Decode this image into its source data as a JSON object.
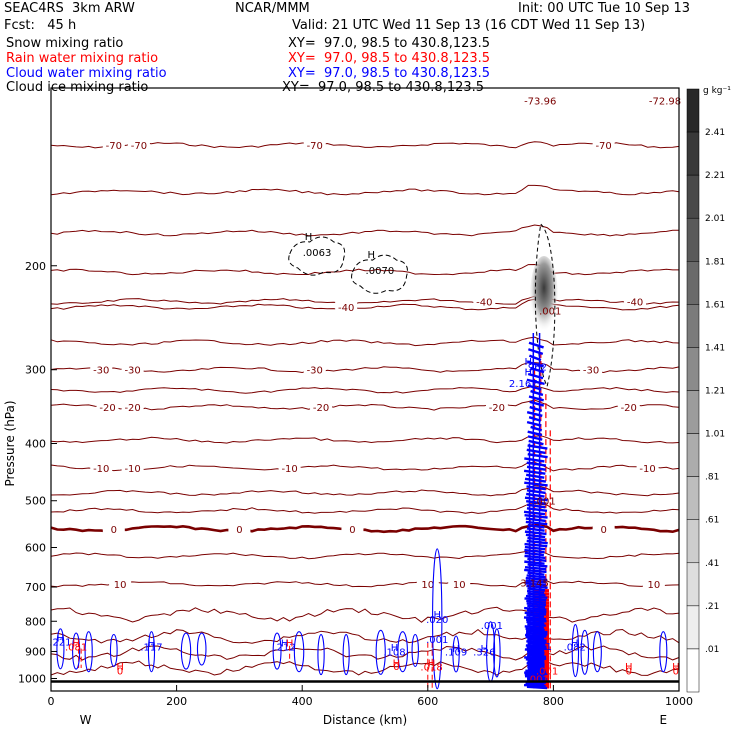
{
  "header": {
    "model": "SEAC4RS  3km ARW",
    "center": "NCAR/MMM",
    "init": "Init: 00 UTC Tue 10 Sep 13",
    "fcst": "Fcst:   45 h",
    "valid": "Valid: 21 UTC Wed 11 Sep 13 (16 CDT Wed 11 Sep 13)"
  },
  "fields": [
    {
      "name": "Snow mixing ratio",
      "xy": "XY=  97.0, 98.5 to 430.8,123.5",
      "color": "#000000"
    },
    {
      "name": "Rain water mixing ratio",
      "xy": "XY=  97.0, 98.5 to 430.8,123.5",
      "color": "#ff0000"
    },
    {
      "name": "Cloud water mixing ratio",
      "xy": "XY=  97.0, 98.5 to 430.8,123.5",
      "color": "#0000ff"
    },
    {
      "name": "Cloud ice mixing ratio",
      "xy": "XY=  97.0, 98.5 to 430.8,123.5",
      "color": "#000000"
    }
  ],
  "chart_data": {
    "type": "contour cross-section",
    "xlabel": "Distance (km)",
    "ylabel": "Pressure (hPa)",
    "xlim": [
      0,
      1000
    ],
    "ylim": [
      1050,
      100
    ],
    "y_log": true,
    "x_ticks": [
      0,
      200,
      400,
      600,
      800,
      1000
    ],
    "y_ticks": [
      1000,
      900,
      800,
      700,
      600,
      500,
      400,
      300,
      200
    ],
    "ends": {
      "left": "W",
      "right": "E"
    },
    "temperature_contours": [
      {
        "value": -70,
        "p": 125,
        "labels": [
          [
            100,
            "-70"
          ],
          [
            140,
            "-70"
          ],
          [
            420,
            "-70"
          ],
          [
            880,
            "-70"
          ]
        ]
      },
      {
        "value": -40,
        "p": 230,
        "labels": [
          [
            690,
            "-40"
          ],
          [
            930,
            "-40"
          ]
        ]
      },
      {
        "value": -40,
        "p": 235,
        "labels": [
          [
            470,
            "-40"
          ]
        ]
      },
      {
        "value": -30,
        "p": 300,
        "labels": [
          [
            80,
            "-30"
          ],
          [
            130,
            "-30"
          ],
          [
            420,
            "-30"
          ],
          [
            860,
            "-30"
          ]
        ]
      },
      {
        "value": -20,
        "p": 347,
        "labels": [
          [
            90,
            "-20"
          ],
          [
            130,
            "-20"
          ],
          [
            430,
            "-20"
          ],
          [
            710,
            "-20"
          ],
          [
            920,
            "-20"
          ]
        ]
      },
      {
        "value": -10,
        "p": 440,
        "labels": [
          [
            80,
            "-10"
          ],
          [
            130,
            "-10"
          ],
          [
            380,
            "-10"
          ],
          [
            950,
            "-10"
          ]
        ]
      },
      {
        "value": 0,
        "p": 558,
        "labels": [
          [
            100,
            "0"
          ],
          [
            300,
            "0"
          ],
          [
            480,
            "0"
          ],
          [
            880,
            "0"
          ]
        ]
      },
      {
        "value": 10,
        "p": 692,
        "labels": [
          [
            110,
            "10"
          ],
          [
            600,
            "10"
          ],
          [
            650,
            "10"
          ],
          [
            960,
            "10"
          ]
        ]
      }
    ],
    "extra_contour_levels_hpa": [
      150,
      176,
      205,
      270,
      325,
      395,
      485,
      520,
      620,
      780,
      850,
      905,
      960
    ],
    "ice_maxima": [
      {
        "x": 420,
        "p": 191,
        "label": "H",
        "value": ".0063"
      },
      {
        "x": 520,
        "p": 205,
        "label": "H",
        "value": ".0070"
      }
    ],
    "storm_labels": [
      {
        "x": 779,
        "p": 105,
        "text": "-73.96"
      },
      {
        "x": 1000,
        "p": 105,
        "text": "-72.98"
      },
      {
        "x": 795,
        "p": 238,
        "text": ".001"
      },
      {
        "x": 760,
        "p": 290,
        "text": "H"
      },
      {
        "x": 772,
        "p": 296,
        "text": ".962"
      },
      {
        "x": 760,
        "p": 302,
        "text": "H"
      },
      {
        "x": 752,
        "p": 316,
        "text": "2.167"
      },
      {
        "x": 786,
        "p": 500,
        "text": ".001"
      },
      {
        "x": 770,
        "p": 688,
        "text": "3.145"
      }
    ],
    "cloud_water_labels": [
      {
        "x": 15,
        "p": 865,
        "text": "H"
      },
      {
        "x": 15,
        "p": 880,
        "text": ".221"
      },
      {
        "x": 160,
        "p": 882,
        "text": "H"
      },
      {
        "x": 160,
        "p": 897,
        "text": ".117"
      },
      {
        "x": 372,
        "p": 882,
        "text": "H"
      },
      {
        "x": 372,
        "p": 897,
        "text": ".212"
      },
      {
        "x": 547,
        "p": 898,
        "text": "H"
      },
      {
        "x": 547,
        "p": 915,
        "text": ".108"
      },
      {
        "x": 615,
        "p": 790,
        "text": "H"
      },
      {
        "x": 615,
        "p": 805,
        "text": ".020"
      },
      {
        "x": 615,
        "p": 870,
        "text": ".001"
      },
      {
        "x": 645,
        "p": 902,
        "text": "H"
      },
      {
        "x": 645,
        "p": 915,
        "text": ".109"
      },
      {
        "x": 690,
        "p": 902,
        "text": "H"
      },
      {
        "x": 690,
        "p": 915,
        "text": ".326"
      },
      {
        "x": 702,
        "p": 825,
        "text": ".001"
      },
      {
        "x": 834,
        "p": 882,
        "text": "H"
      },
      {
        "x": 834,
        "p": 897,
        "text": ".082"
      },
      {
        "x": 780,
        "p": 895,
        "text": ".001"
      }
    ],
    "rain_labels": [
      {
        "x": 40,
        "p": 882,
        "text": "H"
      },
      {
        "x": 40,
        "p": 897,
        "text": ".081"
      },
      {
        "x": 380,
        "p": 882,
        "text": "H"
      },
      {
        "x": 110,
        "p": 968,
        "text": "H"
      },
      {
        "x": 110,
        "p": 985,
        "text": "0"
      },
      {
        "x": 550,
        "p": 955,
        "text": "H"
      },
      {
        "x": 550,
        "p": 968,
        "text": "0"
      },
      {
        "x": 606,
        "p": 955,
        "text": "H"
      },
      {
        "x": 606,
        "p": 970,
        "text": ".018"
      },
      {
        "x": 790,
        "p": 985,
        "text": ".001"
      },
      {
        "x": 775,
        "p": 1015,
        "text": ".001"
      },
      {
        "x": 920,
        "p": 968,
        "text": "H"
      },
      {
        "x": 920,
        "p": 985,
        "text": "0"
      },
      {
        "x": 995,
        "p": 968,
        "text": "H"
      },
      {
        "x": 995,
        "p": 985,
        "text": "0"
      }
    ],
    "colorbar": {
      "unit": "g kg⁻¹",
      "labels": [
        "2.41",
        "2.21",
        "2.01",
        "1.81",
        "1.61",
        "1.41",
        "1.21",
        "1.01",
        ".81",
        ".61",
        ".41",
        ".21",
        ".01"
      ]
    }
  }
}
